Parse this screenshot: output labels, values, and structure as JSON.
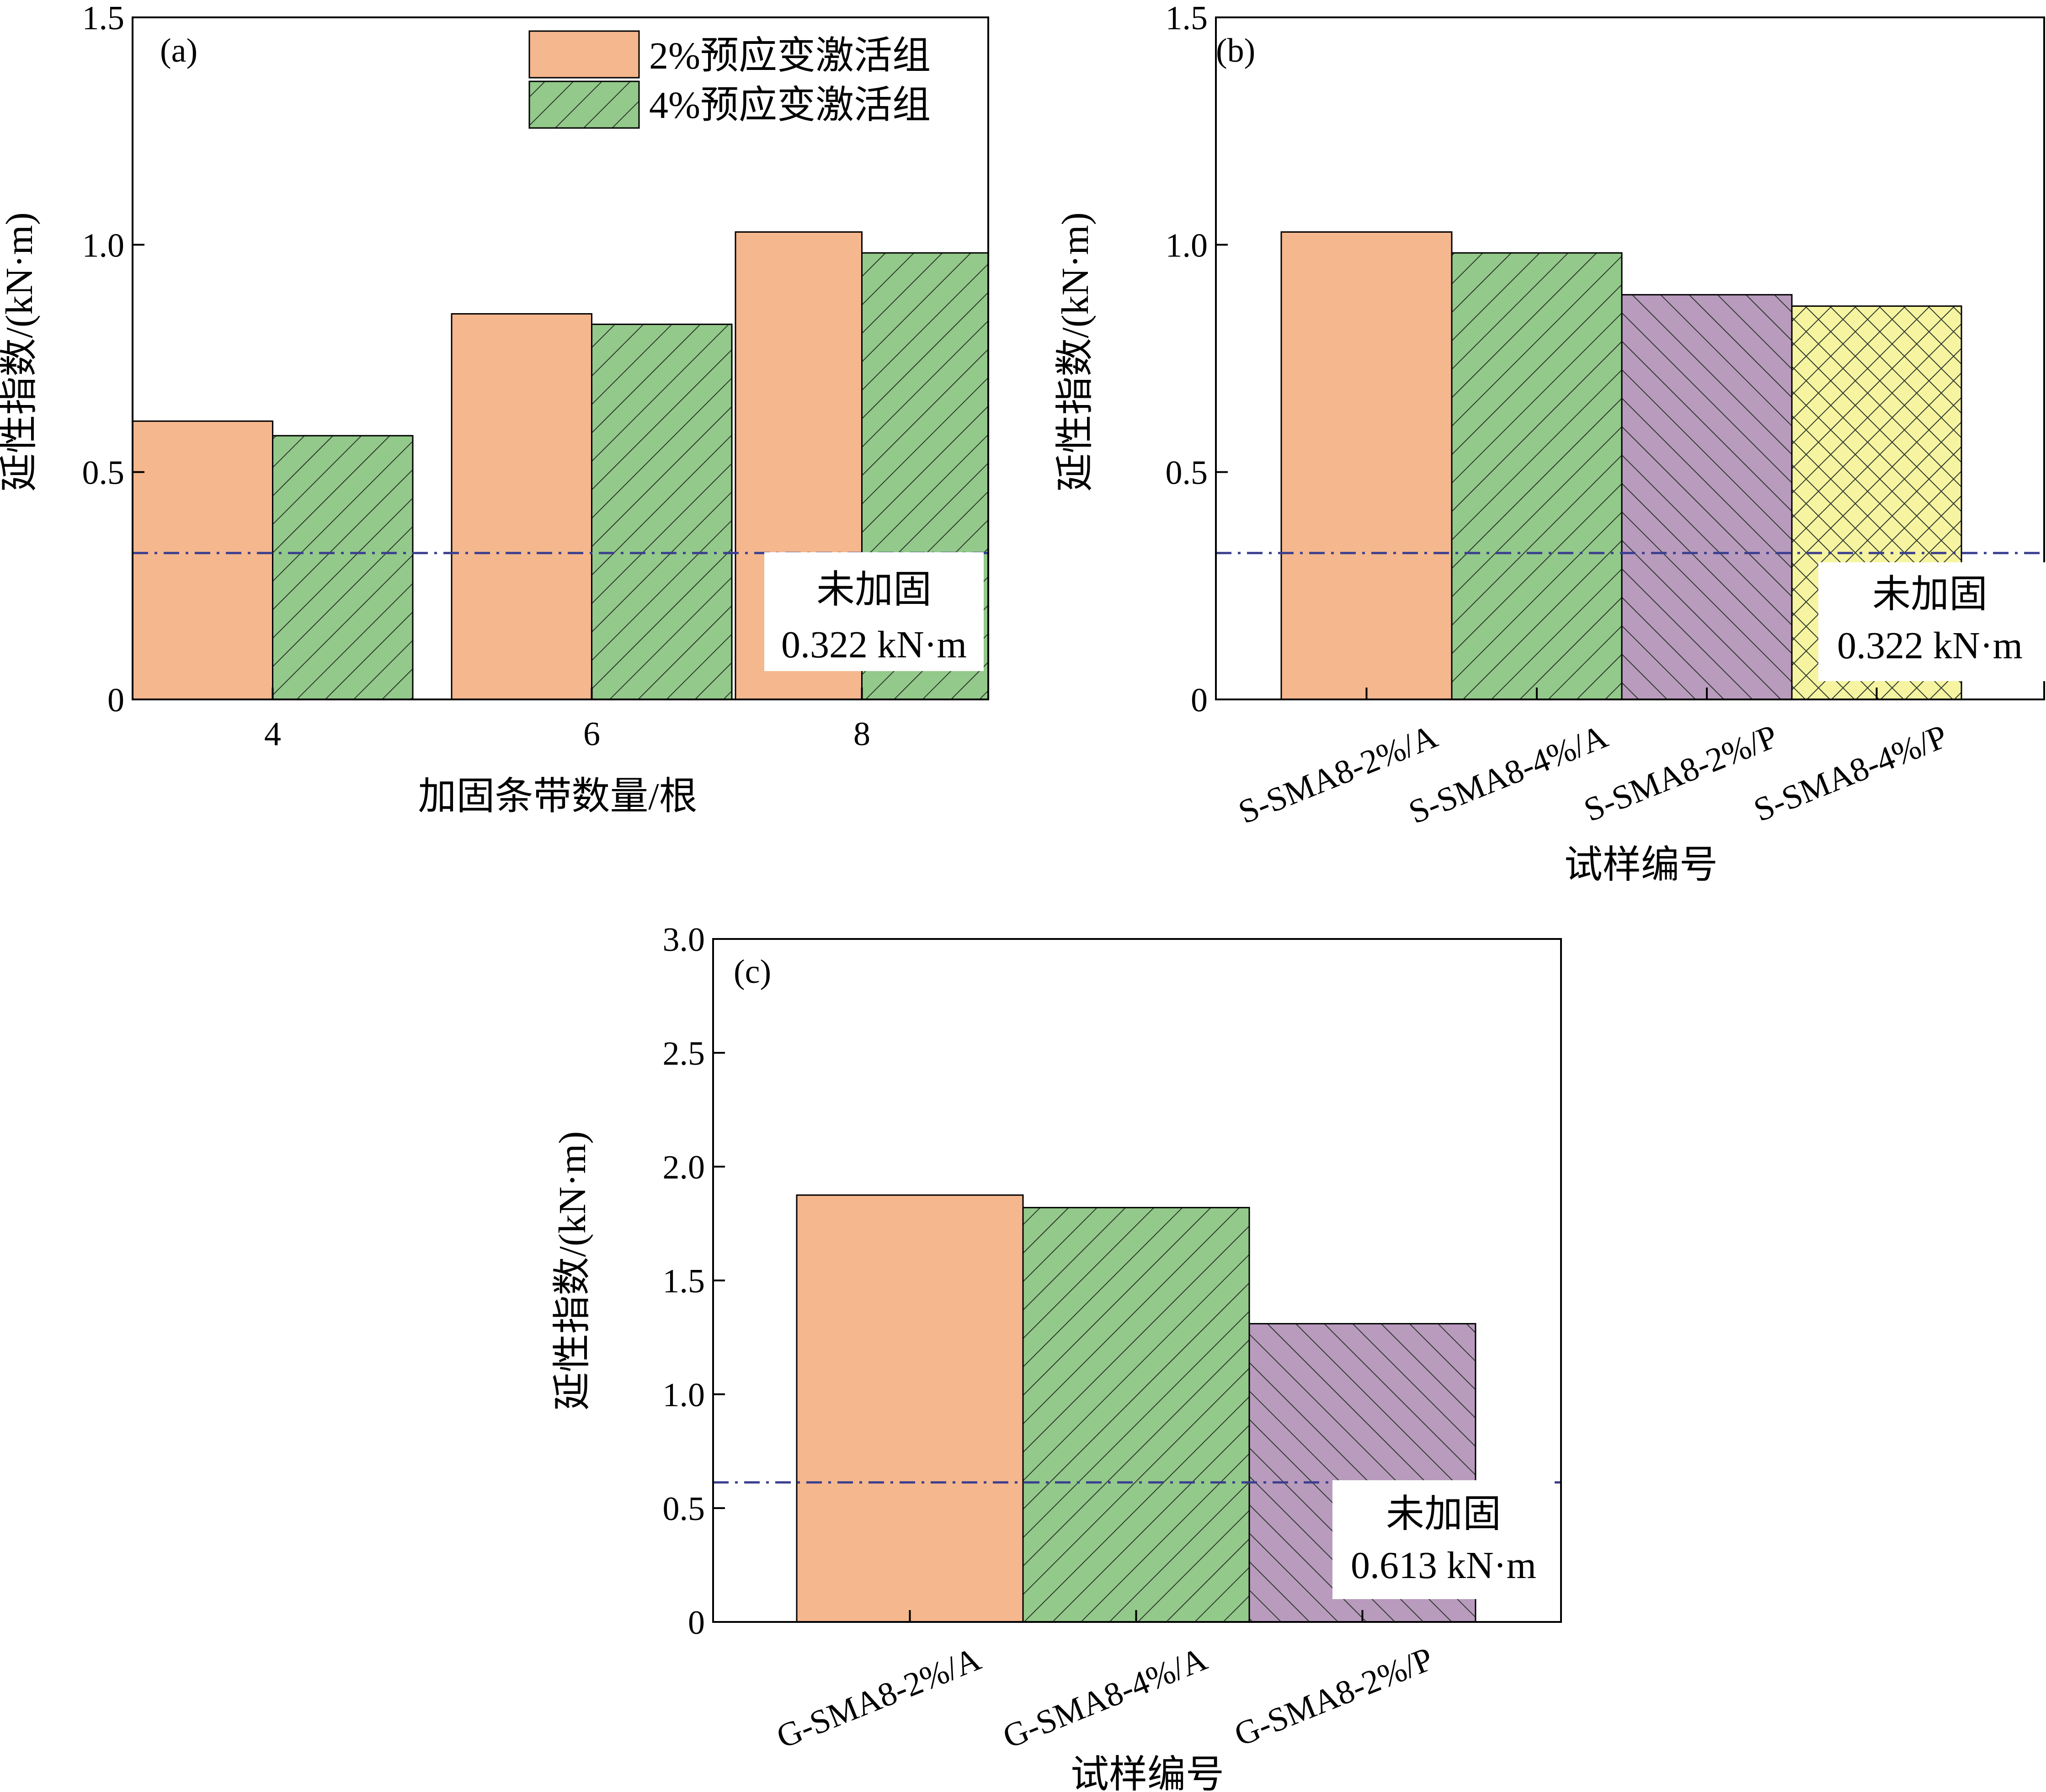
{
  "colors": {
    "orange_fill": "#f5b78e",
    "green_fill": "#93c98a",
    "purple_fill": "#b99bbe",
    "yellow_fill": "#f6f4a0",
    "hatch_line": "#2f3a2f",
    "baseline_line": "#3b3f8f",
    "axis": "#000000"
  },
  "chart_data": [
    {
      "type": "bar",
      "panel": "(a)",
      "xlabel": "加固条带数量/根",
      "ylabel": "延性指数/(kN·m)",
      "categories": [
        "4",
        "6",
        "8"
      ],
      "series": [
        {
          "name": "2%预应变激活组",
          "values": [
            0.612,
            0.848,
            1.028
          ],
          "fill": "orange_fill",
          "pattern": "solid"
        },
        {
          "name": "4%预应变激活组",
          "values": [
            0.58,
            0.825,
            0.982
          ],
          "fill": "green_fill",
          "pattern": "hatch-diag-right"
        }
      ],
      "ylim": [
        0,
        1.5
      ],
      "yticks": [
        "0",
        "0.5",
        "1.0",
        "1.5"
      ],
      "ytick_values": [
        0,
        0.5,
        1.0,
        1.5
      ],
      "legend_position": "top-right",
      "reference_line": {
        "value": 0.322,
        "style": "dash-dot"
      },
      "annotation": {
        "line1": "未加固",
        "line2": "0.322 kN·m"
      }
    },
    {
      "type": "bar",
      "panel": "(b)",
      "xlabel": "试样编号",
      "ylabel": "延性指数/(kN·m)",
      "categories": [
        "S-SMA8-2%/A",
        "S-SMA8-4%/A",
        "S-SMA8-2%/P",
        "S-SMA8-4%/P"
      ],
      "values": [
        1.028,
        0.982,
        0.89,
        0.865
      ],
      "bar_styles": [
        {
          "fill": "orange_fill",
          "pattern": "solid"
        },
        {
          "fill": "green_fill",
          "pattern": "hatch-diag-right"
        },
        {
          "fill": "purple_fill",
          "pattern": "hatch-diag-left"
        },
        {
          "fill": "yellow_fill",
          "pattern": "crosshatch"
        }
      ],
      "ylim": [
        0,
        1.5
      ],
      "yticks": [
        "0",
        "0.5",
        "1.0",
        "1.5"
      ],
      "ytick_values": [
        0,
        0.5,
        1.0,
        1.5
      ],
      "reference_line": {
        "value": 0.322,
        "style": "dash-dot"
      },
      "annotation": {
        "line1": "未加固",
        "line2": "0.322 kN·m"
      }
    },
    {
      "type": "bar",
      "panel": "(c)",
      "xlabel": "试样编号",
      "ylabel": "延性指数/(kN·m)",
      "categories": [
        "G-SMA8-2%/A",
        "G-SMA8-4%/A",
        "G-SMA8-2%/P"
      ],
      "values": [
        1.875,
        1.82,
        1.31
      ],
      "bar_styles": [
        {
          "fill": "orange_fill",
          "pattern": "solid"
        },
        {
          "fill": "green_fill",
          "pattern": "hatch-diag-right"
        },
        {
          "fill": "purple_fill",
          "pattern": "hatch-diag-left"
        }
      ],
      "ylim": [
        0,
        3.0
      ],
      "yticks": [
        "0",
        "0.5",
        "1.0",
        "1.5",
        "2.0",
        "2.5",
        "3.0"
      ],
      "ytick_values": [
        0,
        0.5,
        1.0,
        1.5,
        2.0,
        2.5,
        3.0
      ],
      "reference_line": {
        "value": 0.613,
        "style": "dash-dot"
      },
      "annotation": {
        "line1": "未加固",
        "line2": "0.613 kN·m"
      }
    }
  ]
}
